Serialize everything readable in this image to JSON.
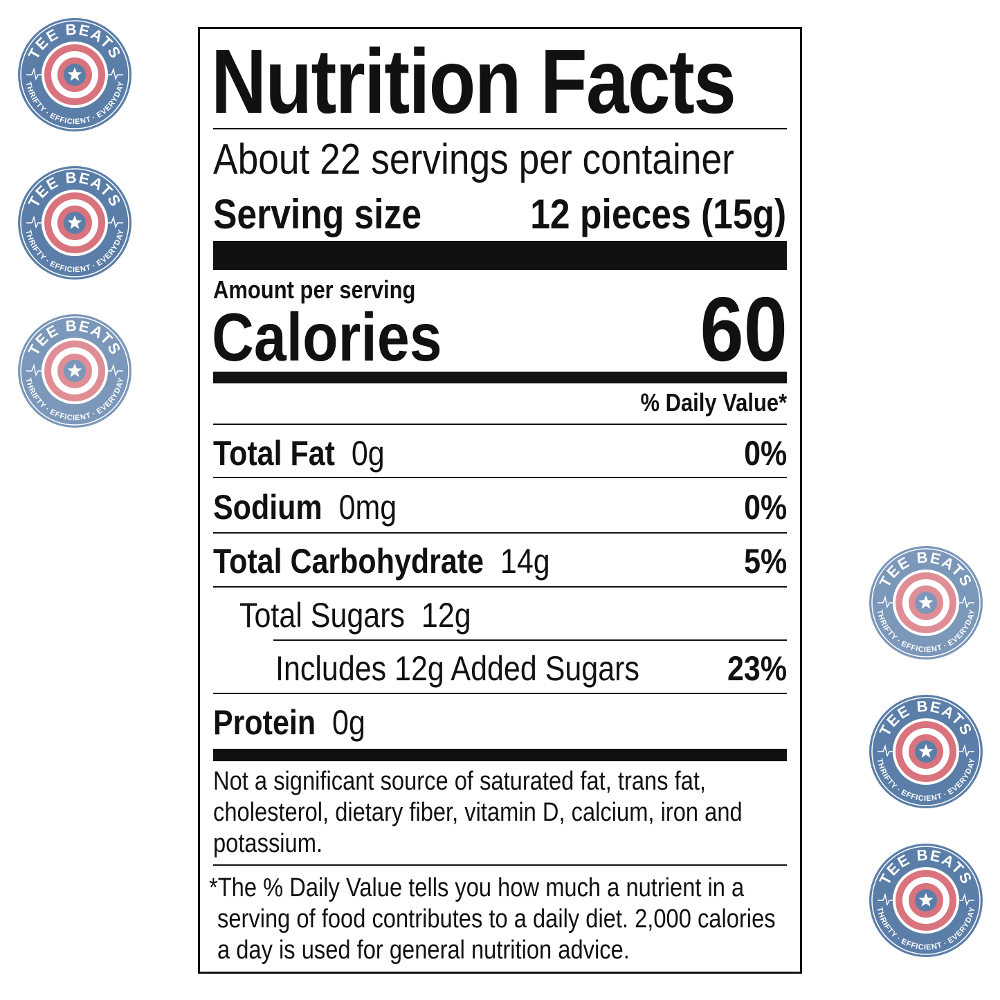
{
  "label": {
    "title": "Nutrition Facts",
    "servings": "About 22 servings per container",
    "serving_size_label": "Serving size",
    "serving_size_value": "12 pieces (15g)",
    "amount_per_serving": "Amount per serving",
    "calories_label": "Calories",
    "calories_value": "60",
    "daily_value_header": "% Daily Value*",
    "nutrients": [
      {
        "name": "Total Fat",
        "amount": "0g",
        "dv": "0%"
      },
      {
        "name": "Sodium",
        "amount": "0mg",
        "dv": "0%"
      },
      {
        "name": "Total Carbohydrate",
        "amount": "14g",
        "dv": "5%"
      },
      {
        "name": "Total Sugars",
        "amount": "12g"
      },
      {
        "name": "Includes 12g Added Sugars",
        "dv": "23%"
      },
      {
        "name": "Protein",
        "amount": "0g"
      }
    ],
    "footnote_lines": [
      "Not a significant source of saturated fat, trans fat,",
      "cholesterol, dietary fiber, vitamin D, calcium, iron and",
      "potassium."
    ],
    "dv_note_lines": [
      "*The % Daily Value tells you how much a nutrient in a",
      "serving of food contributes to a daily diet. 2,000 calories",
      "a day is used for general nutrition advice."
    ]
  },
  "watermark": {
    "top_text": "TEE BEATS",
    "bottom_text": "THRIFTY · EFFICIENT · EVERYDAY",
    "colors": {
      "blue": "#5b7ea8",
      "red": "#d9737d",
      "white": "#ffffff"
    }
  }
}
